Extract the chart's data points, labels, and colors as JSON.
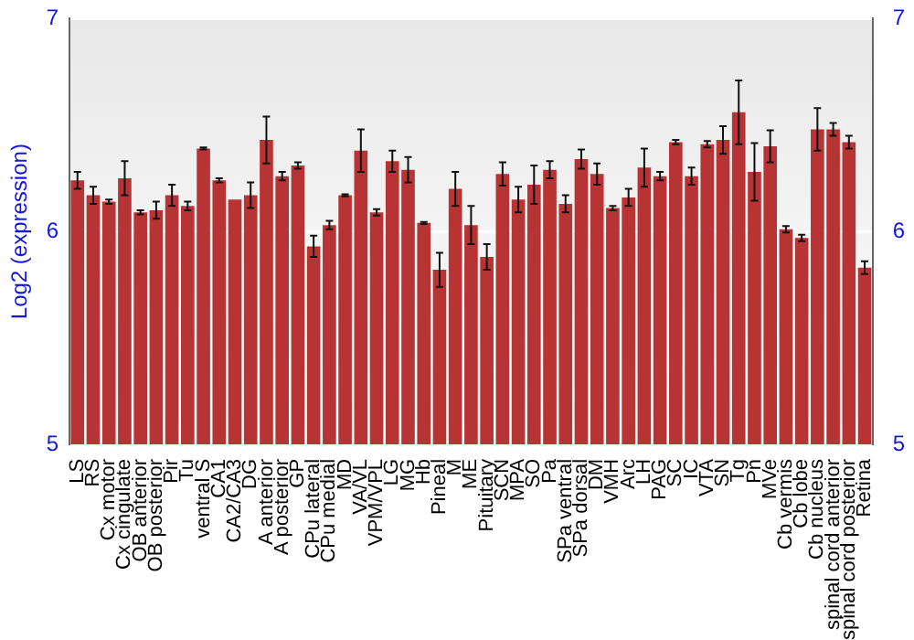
{
  "chart_data": {
    "type": "bar",
    "ylabel": "Log2 (expression)",
    "categories": [
      "LS",
      "RS",
      "Cx motor",
      "Cx cingulate",
      "OB anterior",
      "OB posterior",
      "Pir",
      "Tu",
      "ventral S",
      "CA1",
      "CA2/CA3",
      "DG",
      "A anterior",
      "A posterior",
      "GP",
      "CPu lateral",
      "CPu medial",
      "MD",
      "VA/VL",
      "VPM/VPL",
      "LG",
      "MG",
      "Hb",
      "Pineal",
      "M",
      "ME",
      "Pituitary",
      "SCN",
      "MPA",
      "SO",
      "Pa",
      "SPa ventral",
      "SPa dorsal",
      "DM",
      "VMH",
      "Arc",
      "LH",
      "PAG",
      "SC",
      "IC",
      "VTA",
      "SN",
      "Tg",
      "Pn",
      "MVe",
      "Cb vermis",
      "Cb lobe",
      "Cb nucleus",
      "spinal cord anterior",
      "spinal cord posterior",
      "Retina"
    ],
    "values": [
      6.24,
      6.17,
      6.14,
      6.25,
      6.09,
      6.1,
      6.17,
      6.12,
      6.39,
      6.24,
      6.15,
      6.17,
      6.43,
      6.26,
      6.31,
      5.93,
      6.03,
      6.17,
      6.38,
      6.09,
      6.33,
      6.29,
      6.04,
      5.82,
      6.2,
      6.03,
      5.88,
      6.27,
      6.15,
      6.22,
      6.29,
      6.13,
      6.34,
      6.27,
      6.11,
      6.16,
      6.3,
      6.26,
      6.42,
      6.26,
      6.41,
      6.43,
      6.56,
      6.28,
      6.4,
      6.01,
      5.97,
      6.48,
      6.48,
      6.42,
      5.83
    ],
    "errors": [
      0.04,
      0.04,
      0.01,
      0.08,
      0.01,
      0.04,
      0.05,
      0.02,
      0.005,
      0.01,
      null,
      0.06,
      0.11,
      0.02,
      0.015,
      0.05,
      0.02,
      0.005,
      0.1,
      0.015,
      0.05,
      0.06,
      0.005,
      0.08,
      0.08,
      0.09,
      0.06,
      0.055,
      0.06,
      0.09,
      0.04,
      0.04,
      0.045,
      0.05,
      0.01,
      0.04,
      0.09,
      0.02,
      0.01,
      0.04,
      0.015,
      0.065,
      0.15,
      0.135,
      0.075,
      0.015,
      0.015,
      0.1,
      0.03,
      0.03,
      0.03
    ],
    "color": "#b83434",
    "ylim": [
      5,
      7
    ],
    "yticks": [
      5,
      6,
      7
    ],
    "y2lim": [
      5,
      7
    ],
    "y2ticks": [
      5,
      6,
      7
    ],
    "grid": "y",
    "legend": false
  }
}
